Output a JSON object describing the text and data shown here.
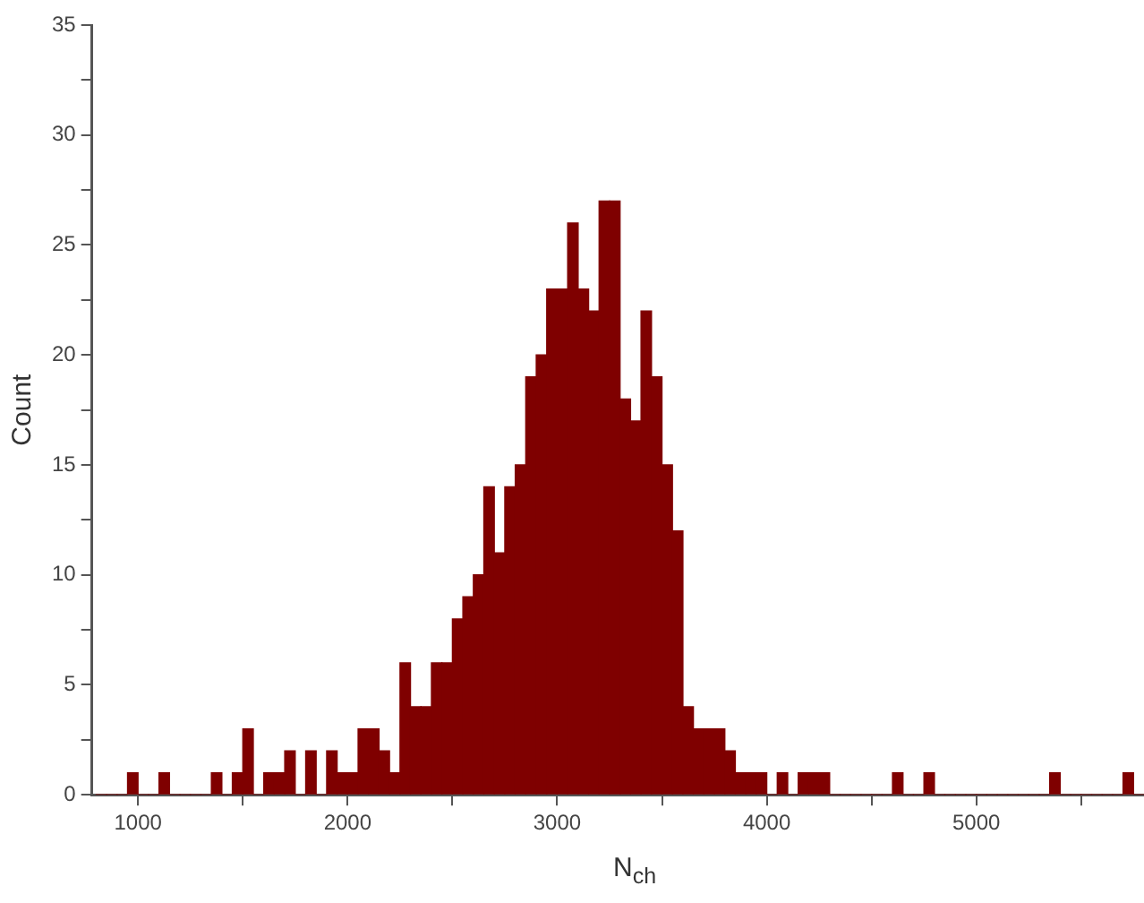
{
  "chart_data": {
    "type": "histogram",
    "xlabel": "N$_{ch}$",
    "ylabel": "Count",
    "color": "#7f0000",
    "bins": [
      800,
      850,
      900,
      950,
      1000,
      1050,
      1100,
      1150,
      1200,
      1250,
      1300,
      1350,
      1400,
      1450,
      1500,
      1550,
      1600,
      1650,
      1700,
      1750,
      1800,
      1850,
      1900,
      1950,
      2000,
      2050,
      2100,
      2150,
      2200,
      2250,
      2300,
      2350,
      2400,
      2450,
      2500,
      2550,
      2600,
      2650,
      2700,
      2750,
      2800,
      2850,
      2900,
      2950,
      3000,
      3050,
      3100,
      3150,
      3200,
      3250,
      3300,
      3350,
      3400,
      3450,
      3500,
      3550,
      3600,
      3650,
      3700,
      3750,
      3800,
      3850,
      3900,
      3950,
      4000,
      4050,
      4100,
      4150,
      4200,
      4250,
      4300,
      4350,
      4400,
      4450,
      4500,
      4550,
      4600,
      4650,
      4700,
      4750,
      4800,
      4850,
      4900,
      4950,
      5000,
      5050,
      5100,
      5150,
      5200,
      5250,
      5300,
      5350,
      5400,
      5450,
      5500,
      5550,
      5600,
      5650,
      5700,
      5750,
      5800
    ],
    "values": [
      0,
      0,
      0,
      1,
      0,
      0,
      1,
      0,
      0,
      0,
      0,
      1,
      0,
      1,
      3,
      0,
      1,
      1,
      2,
      0,
      2,
      0,
      2,
      1,
      1,
      3,
      3,
      2,
      1,
      6,
      4,
      4,
      6,
      6,
      8,
      9,
      10,
      14,
      11,
      14,
      15,
      19,
      20,
      23,
      23,
      26,
      23,
      22,
      27,
      27,
      18,
      17,
      22,
      19,
      15,
      12,
      4,
      3,
      3,
      3,
      2,
      1,
      1,
      1,
      0,
      1,
      0,
      1,
      1,
      1,
      0,
      0,
      0,
      0,
      0,
      0,
      1,
      0,
      0,
      1,
      0,
      0,
      0,
      0,
      0,
      0,
      0,
      0,
      0,
      0,
      0,
      1,
      0,
      0,
      0,
      0,
      0,
      0,
      1,
      0
    ],
    "xlim": [
      780,
      5800
    ],
    "ylim": [
      0,
      35
    ],
    "xticks": [
      1000,
      {
        "value": 1500,
        "label": null
      },
      2000,
      {
        "value": 2500,
        "label": null
      },
      3000,
      {
        "value": 3500,
        "label": null
      },
      4000,
      {
        "value": 4500,
        "label": null
      },
      5000,
      {
        "value": 5500,
        "label": null
      }
    ],
    "yticks": [
      0,
      {
        "value": 2.5,
        "label": null
      },
      5,
      {
        "value": 7.5,
        "label": null
      },
      10,
      {
        "value": 12.5,
        "label": null
      },
      15,
      {
        "value": 17.5,
        "label": null
      },
      20,
      {
        "value": 22.5,
        "label": null
      },
      25,
      {
        "value": 27.5,
        "label": null
      },
      30,
      {
        "value": 32.5,
        "label": null
      },
      35
    ]
  }
}
